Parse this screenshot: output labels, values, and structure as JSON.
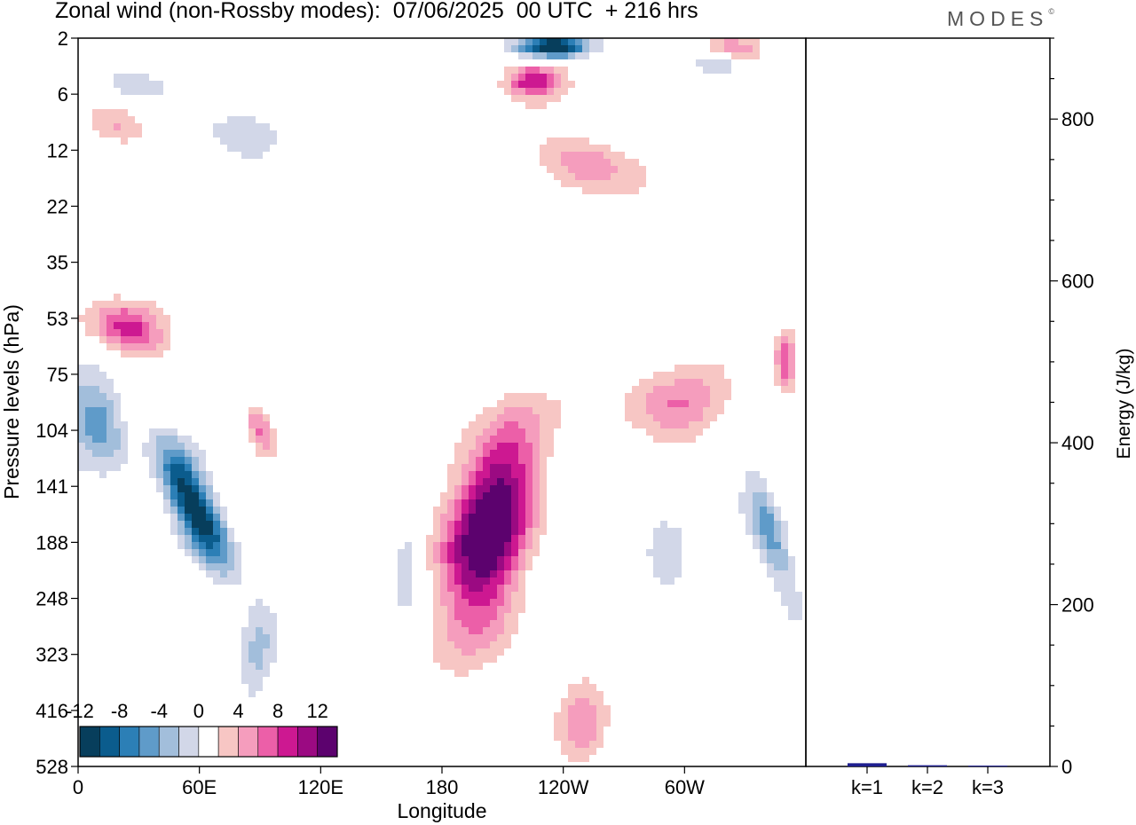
{
  "header": {
    "title": "Zonal wind (non-Rossby modes):  07/06/2025  00 UTC  + 216 hrs",
    "brand": "MODES",
    "brand_mark": "©"
  },
  "colors": {
    "neg": [
      "#073e5c",
      "#0b5c8d",
      "#2c7fb6",
      "#5f9bc9",
      "#a2bedb",
      "#d2d7e8"
    ],
    "pos": [
      "#f7c6c4",
      "#f59dbd",
      "#ec5fa8",
      "#cd1891",
      "#9b0a82",
      "#5c026e"
    ],
    "energy_bar": "#1f1f8f",
    "frame": "#000000"
  },
  "chart_data": [
    {
      "type": "heatmap",
      "title": "Zonal wind (non-Rossby modes):  07/06/2025  00 UTC  + 216 hrs",
      "xlabel": "Longitude",
      "ylabel": "Pressure levels (hPa)",
      "x_ticks": [
        "0",
        "60E",
        "120E",
        "180",
        "120W",
        "60W"
      ],
      "x_tick_values": [
        0,
        60,
        120,
        180,
        240,
        300
      ],
      "xlim": [
        0,
        360
      ],
      "y_ticks": [
        "2",
        "6",
        "12",
        "22",
        "35",
        "53",
        "75",
        "104",
        "141",
        "188",
        "248",
        "323",
        "416",
        "528"
      ],
      "colorbar": {
        "labels": [
          "-12",
          "-8",
          "-4",
          "0",
          "4",
          "8",
          "12"
        ],
        "levels": [
          -14,
          -12,
          -10,
          -8,
          -6,
          -4,
          -2,
          2,
          4,
          6,
          8,
          10,
          12,
          14
        ]
      },
      "features": [
        {
          "sign": "neg",
          "lon": [
            40,
            76
          ],
          "level": [
            8.0,
            8.8
          ],
          "rx": 22,
          "ry": 78,
          "tilt": -0.45,
          "max": 14.5
        },
        {
          "sign": "neg",
          "lon": [
            0,
            20
          ],
          "level": [
            6.2,
            7.6
          ],
          "rx": 30,
          "ry": 48,
          "tilt": -0.3,
          "max": 7.5
        },
        {
          "sign": "neg",
          "lon": [
            60,
            118
          ],
          "level": [
            9.5,
            12.5
          ],
          "rx": 18,
          "ry": 70,
          "tilt": 0.1,
          "max": 3.5
        },
        {
          "sign": "neg",
          "lon": [
            150,
            175
          ],
          "level": [
            7.5,
            11.0
          ],
          "rx": 22,
          "ry": 60,
          "tilt": 0,
          "max": 3.5
        },
        {
          "sign": "neg",
          "lon": [
            330,
            355
          ],
          "level": [
            8.0,
            9.8
          ],
          "rx": 18,
          "ry": 70,
          "tilt": -0.3,
          "max": 7.5
        },
        {
          "sign": "neg",
          "lon": [
            280,
            350
          ],
          "level": [
            0.1,
            0.8
          ],
          "rx": 30,
          "ry": 14,
          "tilt": 0,
          "max": 5.5
        },
        {
          "sign": "neg",
          "lon": [
            205,
            265
          ],
          "level": [
            0.1,
            0.2
          ],
          "rx": 35,
          "ry": 12,
          "tilt": 0,
          "max": 16
        },
        {
          "sign": "neg",
          "lon": [
            0,
            60
          ],
          "level": [
            0.5,
            1.2
          ],
          "rx": 35,
          "ry": 20,
          "tilt": 0.2,
          "max": 5
        },
        {
          "sign": "neg",
          "lon": [
            60,
            110
          ],
          "level": [
            1.2,
            2.5
          ],
          "rx": 38,
          "ry": 30,
          "tilt": 0.3,
          "max": 4
        },
        {
          "sign": "neg",
          "lon": [
            260,
            320
          ],
          "level": [
            8.5,
            10.0
          ],
          "rx": 22,
          "ry": 55,
          "tilt": 0,
          "max": 3.5
        },
        {
          "sign": "pos",
          "lon": [
            170,
            245
          ],
          "level": [
            7.0,
            9.5
          ],
          "rx": 40,
          "ry": 100,
          "tilt": 0.2,
          "max": 11.5
        },
        {
          "sign": "pos",
          "lon": [
            150,
            240
          ],
          "level": [
            8.0,
            10.8
          ],
          "rx": 50,
          "ry": 95,
          "tilt": 0,
          "max": 7
        },
        {
          "sign": "pos",
          "lon": [
            240,
            350
          ],
          "level": [
            6.0,
            7.2
          ],
          "rx": 60,
          "ry": 40,
          "tilt": -0.1,
          "max": 5.5
        },
        {
          "sign": "pos",
          "lon": [
            0,
            50
          ],
          "level": [
            4.8,
            5.6
          ],
          "rx": 40,
          "ry": 28,
          "tilt": 0.4,
          "max": 9.5
        },
        {
          "sign": "pos",
          "lon": [
            200,
            300
          ],
          "level": [
            1.8,
            2.6
          ],
          "rx": 50,
          "ry": 30,
          "tilt": 0.2,
          "max": 6.5
        },
        {
          "sign": "pos",
          "lon": [
            200,
            250
          ],
          "level": [
            0.6,
            0.9
          ],
          "rx": 32,
          "ry": 18,
          "tilt": 0,
          "max": 9.5
        },
        {
          "sign": "pos",
          "lon": [
            230,
            270
          ],
          "level": [
            11.5,
            13.0
          ],
          "rx": 25,
          "ry": 55,
          "tilt": 0,
          "max": 4.5
        },
        {
          "sign": "pos",
          "lon": [
            0,
            40
          ],
          "level": [
            1.3,
            1.9
          ],
          "rx": 35,
          "ry": 18,
          "tilt": 0.3,
          "max": 3.5
        },
        {
          "sign": "pos",
          "lon": [
            340,
            360
          ],
          "level": [
            5.0,
            6.5
          ],
          "rx": 12,
          "ry": 40,
          "tilt": 0,
          "max": 7.5
        },
        {
          "sign": "pos",
          "lon": [
            60,
            120
          ],
          "level": [
            6.5,
            7.5
          ],
          "rx": 14,
          "ry": 28,
          "tilt": -0.4,
          "max": 6.5
        },
        {
          "sign": "pos",
          "lon": [
            300,
            350
          ],
          "level": [
            0,
            0.4
          ],
          "rx": 30,
          "ry": 14,
          "tilt": 0,
          "max": 6
        }
      ]
    },
    {
      "type": "bar",
      "ylabel": "Energy (J/kg)",
      "categories": [
        "k=1",
        "k=2",
        "k=3"
      ],
      "values": [
        4,
        1.5,
        1
      ],
      "ylim": [
        0,
        900
      ],
      "y_ticks": [
        "0",
        "200",
        "400",
        "600",
        "800"
      ],
      "y_tick_values": [
        0,
        200,
        400,
        600,
        800
      ]
    }
  ]
}
